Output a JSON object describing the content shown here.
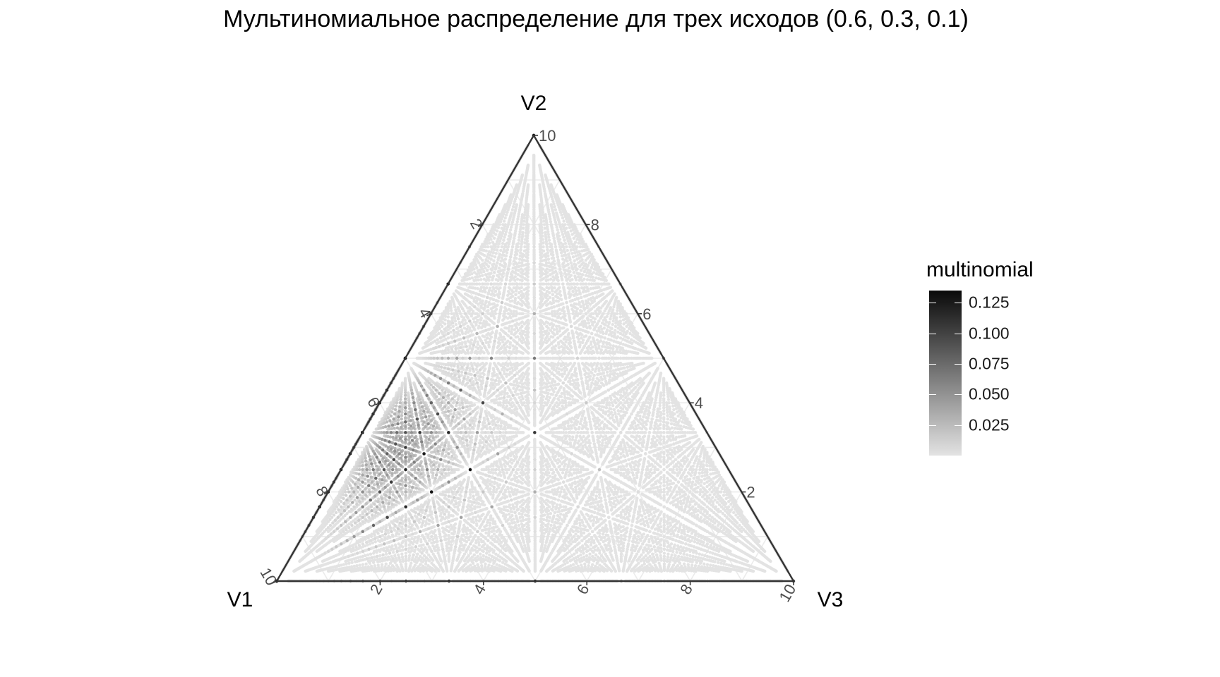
{
  "chart_data": {
    "type": "scatter",
    "subtype": "ternary",
    "title": "Мультиномиальное распределение для трех исходов (0.6, 0.3, 0.1)",
    "probabilities": [
      0.6,
      0.3,
      0.1
    ],
    "axes": {
      "left_vertex": "V1",
      "top_vertex": "V2",
      "right_vertex": "V3",
      "range": [
        0,
        10
      ],
      "ticks": [
        "2",
        "4",
        "6",
        "8",
        "10"
      ]
    },
    "legend": {
      "title": "multinomial",
      "breaks": [
        "0.125",
        "0.100",
        "0.075",
        "0.050",
        "0.025"
      ],
      "placement": "right",
      "color_low": "#e3e3e3",
      "color_high": "#0a0a0a",
      "value_min": 0.0,
      "value_max": 0.135
    },
    "grid": true,
    "points": "all integer combinations (V1, V2, V3) with V1+V2+V3 = n for n = 1..45, shown normalized to 10; color = multinomial probability"
  }
}
